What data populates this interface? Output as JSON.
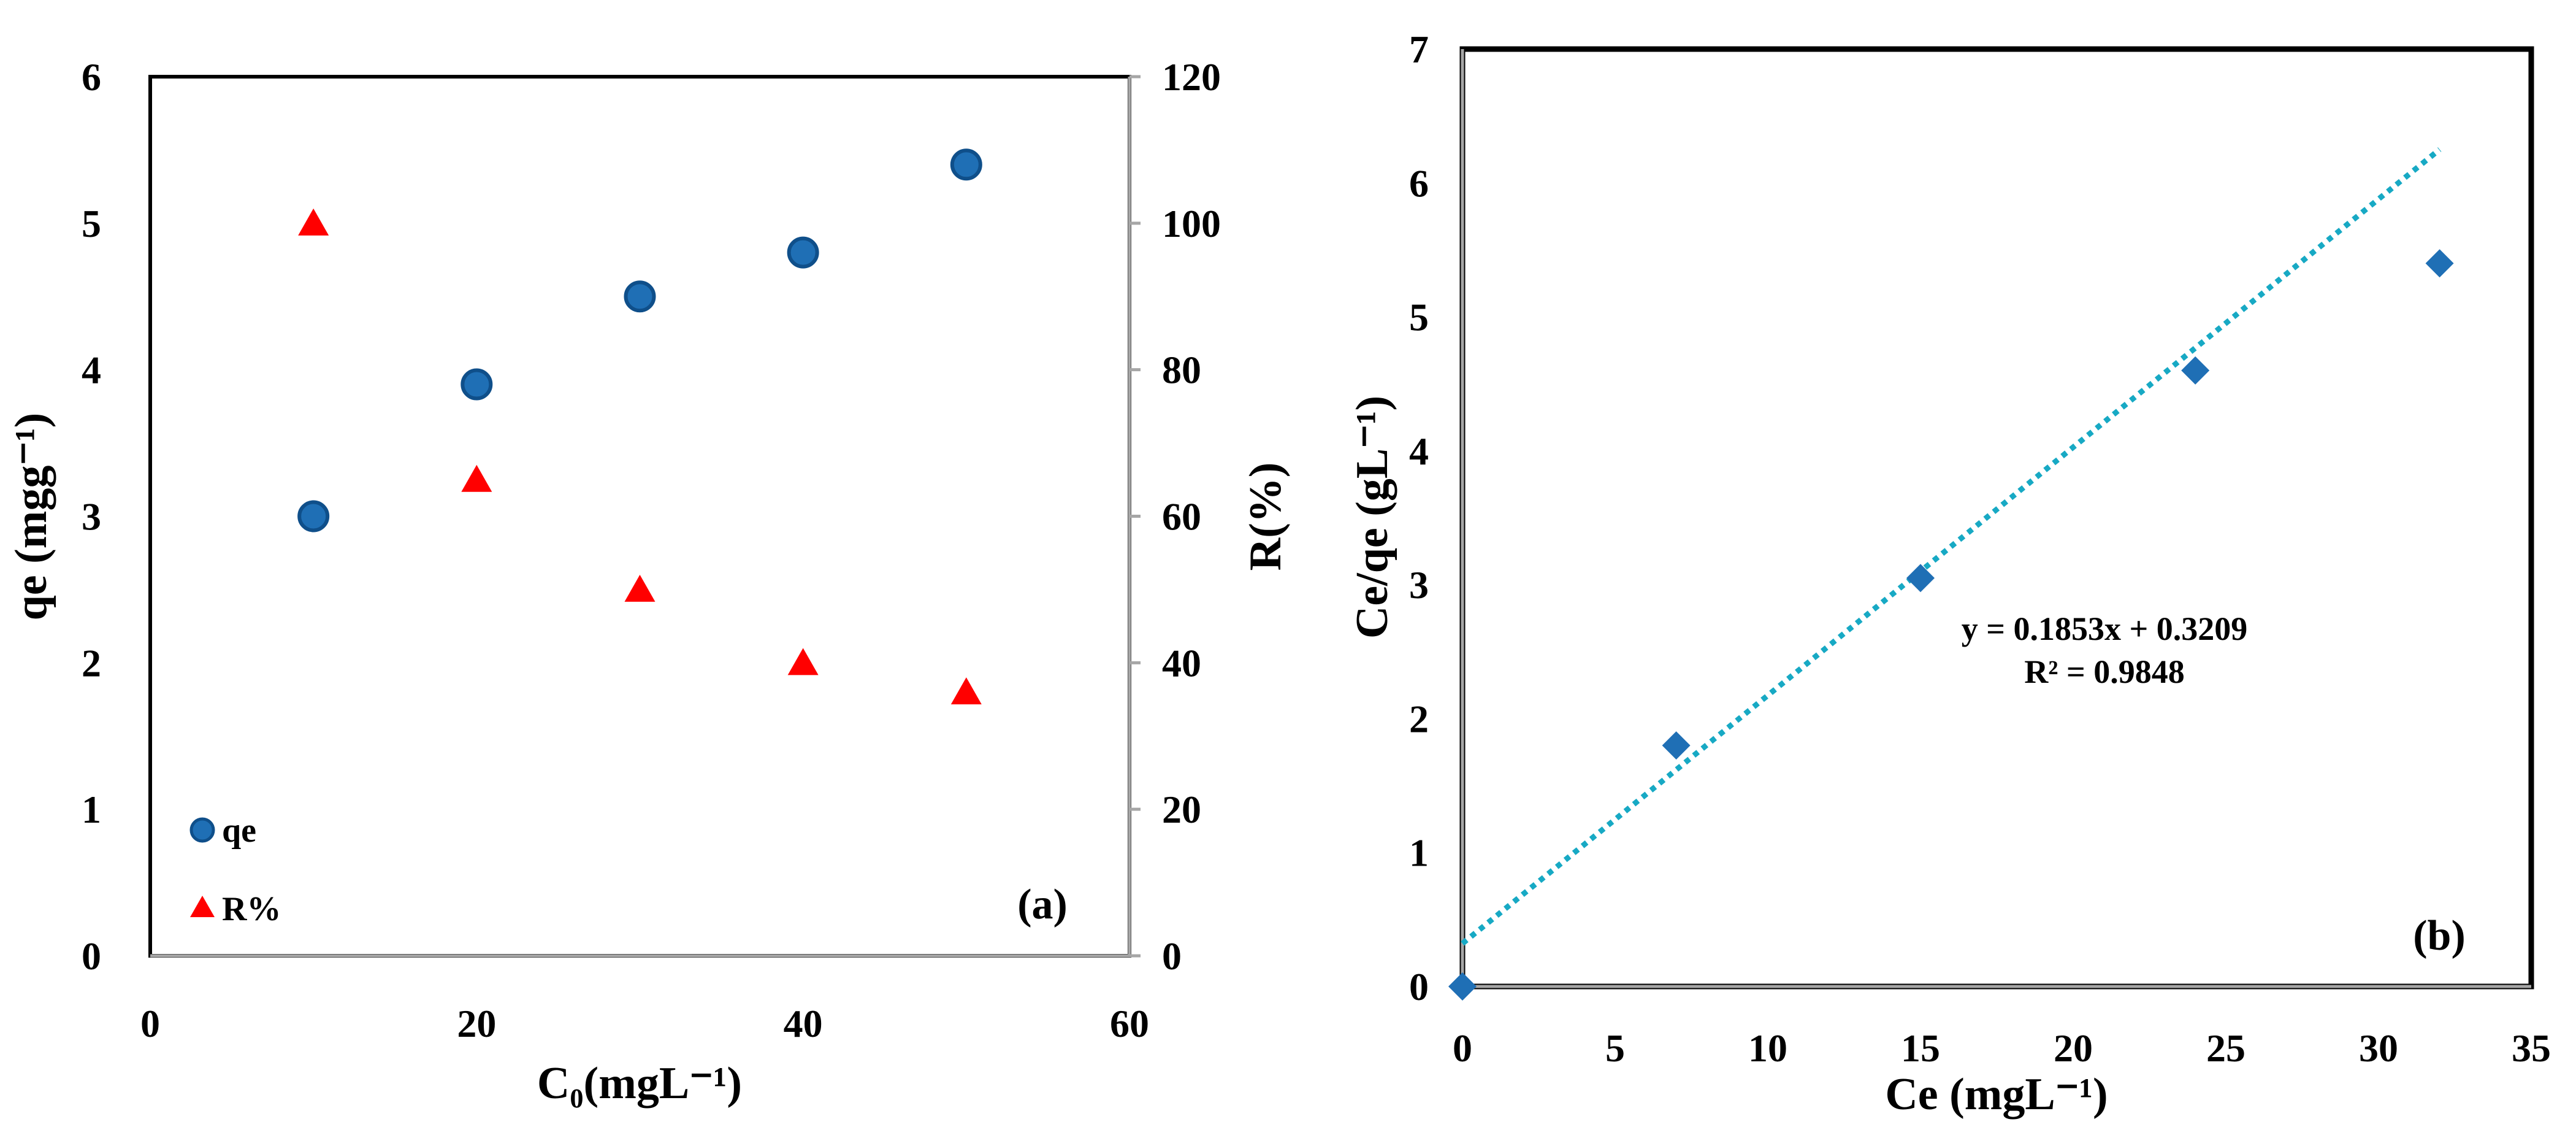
{
  "chart_data": [
    {
      "type": "scatter",
      "panel_label": "(a)",
      "xlabel": "C₀(mgL⁻¹)",
      "ylabel": "qe (mgg⁻¹)",
      "y2label": "R(%)",
      "xlim": [
        0,
        60
      ],
      "ylim": [
        0,
        6
      ],
      "y2lim": [
        0,
        120
      ],
      "x_ticks": [
        "0",
        "20",
        "40",
        "60"
      ],
      "y_ticks": [
        "0",
        "1",
        "2",
        "3",
        "4",
        "5",
        "6"
      ],
      "y2_ticks": [
        "0",
        "20",
        "40",
        "60",
        "80",
        "100",
        "120"
      ],
      "legend_position": "bottom-left",
      "grid": false,
      "series": [
        {
          "name": "qe",
          "axis": "left",
          "marker": "circle",
          "color": "#1f6fb5",
          "x": [
            10,
            20,
            30,
            40,
            50
          ],
          "y": [
            3.0,
            3.9,
            4.5,
            4.8,
            5.4
          ]
        },
        {
          "name": "R%",
          "axis": "right",
          "marker": "triangle",
          "color": "#ff0000",
          "x": [
            10,
            20,
            30,
            40,
            50
          ],
          "y": [
            100,
            65,
            50,
            40,
            36
          ]
        }
      ]
    },
    {
      "type": "scatter",
      "panel_label": "(b)",
      "xlabel": "Ce (mgL⁻¹)",
      "ylabel": "Ce/qe (gL⁻¹)",
      "xlim": [
        0,
        35
      ],
      "ylim": [
        0,
        7
      ],
      "x_ticks": [
        "0",
        "5",
        "10",
        "15",
        "20",
        "25",
        "30",
        "35"
      ],
      "y_ticks": [
        "0",
        "1",
        "2",
        "3",
        "4",
        "5",
        "6",
        "7"
      ],
      "grid": false,
      "series": [
        {
          "marker": "diamond",
          "color": "#1f6fb5",
          "x": [
            0,
            7,
            15,
            24,
            32
          ],
          "y": [
            0,
            1.8,
            3.05,
            4.6,
            5.4
          ]
        }
      ],
      "trendline": {
        "slope": 0.1853,
        "intercept": 0.3209,
        "x_range": [
          0,
          32
        ],
        "color": "#17a9c4",
        "equation": "y = 0.1853x + 0.3209",
        "r2": "R² = 0.9848"
      }
    }
  ],
  "colors": {
    "frame": "#000000",
    "axis_gray": "#a6a6a6"
  }
}
